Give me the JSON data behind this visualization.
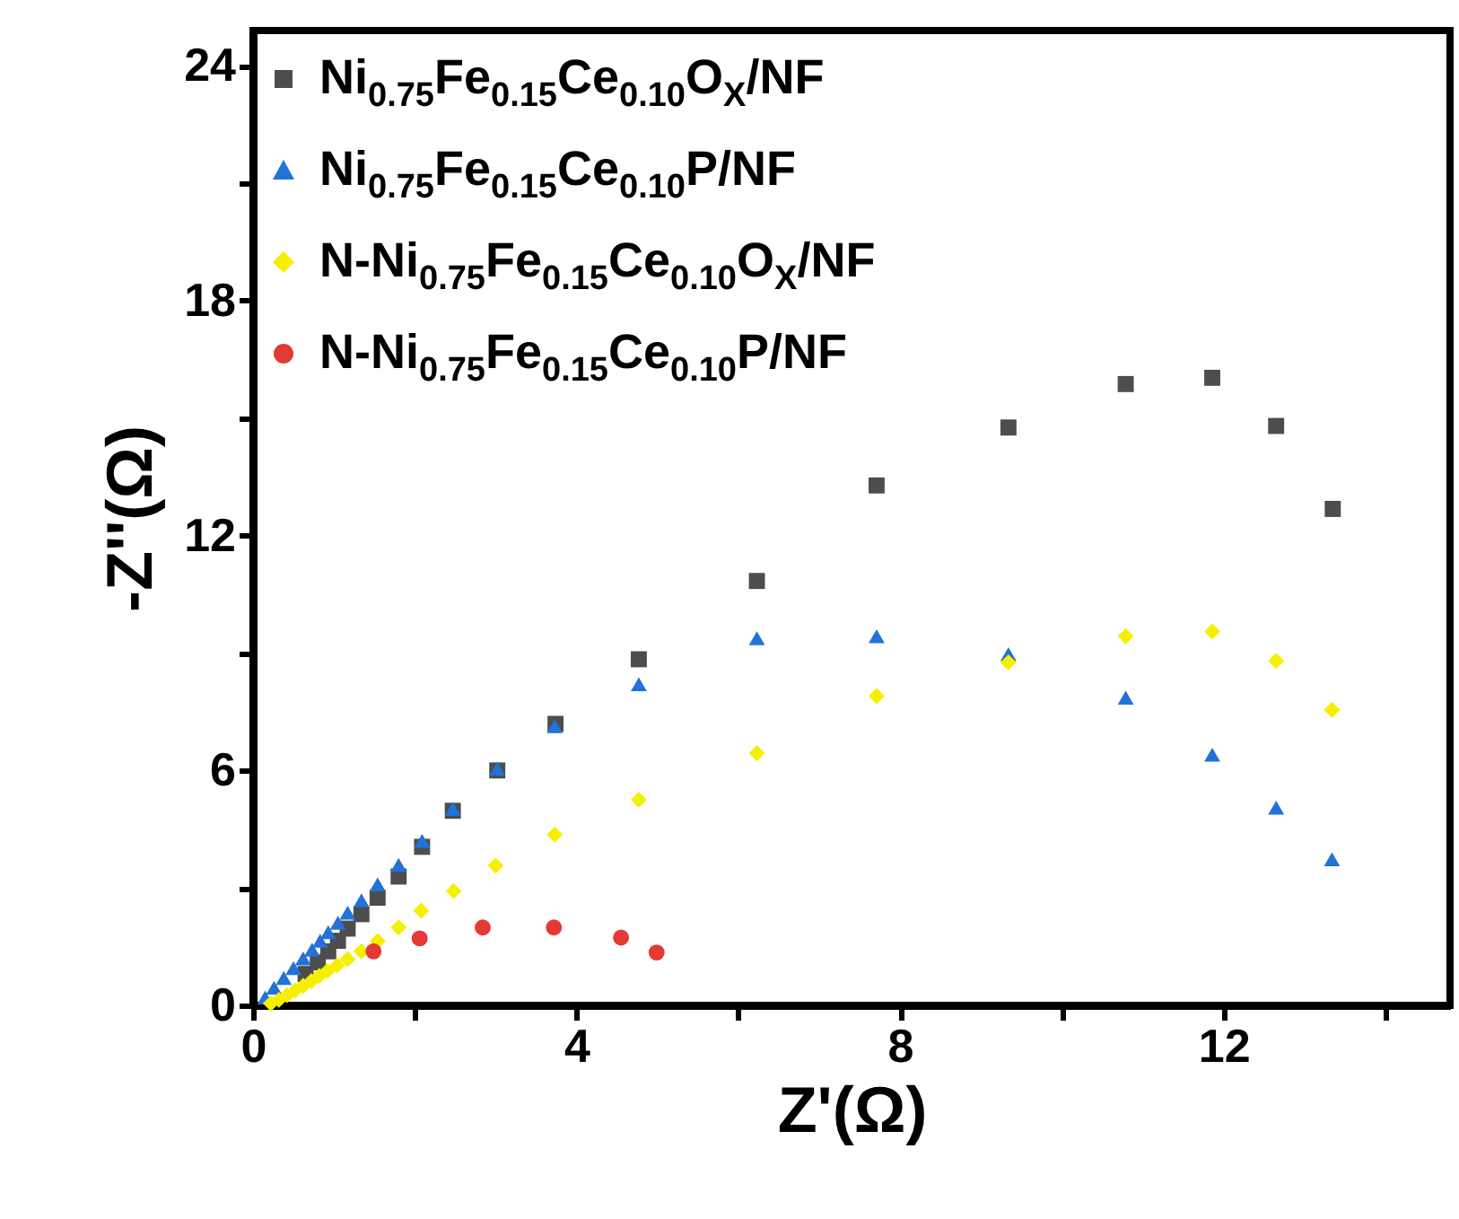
{
  "chart_data": {
    "type": "scatter",
    "xlabel": "Z'(Ω)",
    "ylabel": "-Z''(Ω)",
    "xlim": [
      0,
      14.8
    ],
    "ylim": [
      0,
      24.9
    ],
    "xticks": [
      0,
      {
        "value": 2,
        "label": null
      },
      4,
      {
        "value": 6,
        "label": null
      },
      8,
      {
        "value": 10,
        "label": null
      },
      12,
      {
        "value": 14,
        "label": null
      }
    ],
    "yticks": [
      0,
      {
        "value": 3,
        "label": null
      },
      6,
      {
        "value": 9,
        "label": null
      },
      12,
      {
        "value": 15,
        "label": null
      },
      18,
      {
        "value": 21,
        "label": null
      },
      24
    ],
    "grid": false,
    "legend": "top left",
    "series": [
      {
        "name": "Ni$_{0.75}$Fe$_{0.15}$Ce$_{0.10}$O$_{X}$/NF",
        "color": "#4d4d4d",
        "marker": "square",
        "x": [
          0.65,
          0.8,
          0.93,
          1.05,
          1.17,
          1.34,
          1.54,
          1.8,
          2.09,
          2.47,
          3.02,
          3.74,
          4.77,
          6.23,
          7.71,
          9.34,
          10.79,
          11.86,
          12.65,
          13.35
        ],
        "values": [
          0.8,
          1.1,
          1.38,
          1.65,
          1.96,
          2.33,
          2.75,
          3.29,
          4.05,
          4.97,
          6.0,
          7.19,
          8.84,
          10.84,
          13.28,
          14.76,
          15.87,
          16.03,
          14.8,
          12.68
        ]
      },
      {
        "name": "Ni$_{0.75}$Fe$_{0.15}$Ce$_{0.10}$P/NF",
        "color": "#2272d8",
        "marker": "triangle",
        "x": [
          0.15,
          0.26,
          0.38,
          0.5,
          0.62,
          0.73,
          0.83,
          0.93,
          1.05,
          1.17,
          1.34,
          1.54,
          1.8,
          2.09,
          2.47,
          3.02,
          3.73,
          4.77,
          6.23,
          7.71,
          9.34,
          10.79,
          11.86,
          12.65,
          13.34
        ],
        "values": [
          0.2,
          0.45,
          0.7,
          0.95,
          1.2,
          1.42,
          1.65,
          1.87,
          2.11,
          2.37,
          2.68,
          3.09,
          3.59,
          4.2,
          5.02,
          6.05,
          7.13,
          8.2,
          9.38,
          9.43,
          8.97,
          7.86,
          6.4,
          5.05,
          3.73
        ]
      },
      {
        "name": "N-Ni$_{0.75}$Fe$_{0.15}$Ce$_{0.10}$O$_{X}$/NF",
        "color": "#f5ef00",
        "marker": "diamond",
        "x": [
          0.22,
          0.32,
          0.42,
          0.52,
          0.62,
          0.72,
          0.82,
          0.92,
          1.04,
          1.17,
          1.34,
          1.54,
          1.8,
          2.08,
          2.48,
          3.0,
          3.73,
          4.77,
          6.23,
          7.71,
          9.34,
          10.79,
          11.86,
          12.65,
          13.34
        ],
        "values": [
          0.05,
          0.14,
          0.26,
          0.38,
          0.5,
          0.62,
          0.75,
          0.88,
          1.02,
          1.18,
          1.38,
          1.64,
          1.99,
          2.42,
          2.92,
          3.57,
          4.36,
          5.25,
          6.44,
          7.9,
          8.76,
          9.43,
          9.55,
          8.8,
          7.55
        ]
      },
      {
        "name": "N-Ni$_{0.75}$Fe$_{0.15}$Ce$_{0.10}$P/NF",
        "color": "#e53935",
        "marker": "circle",
        "x": [
          1.49,
          2.06,
          2.84,
          3.72,
          4.55,
          4.99
        ],
        "values": [
          1.38,
          1.71,
          1.99,
          1.99,
          1.73,
          1.35
        ]
      }
    ]
  }
}
